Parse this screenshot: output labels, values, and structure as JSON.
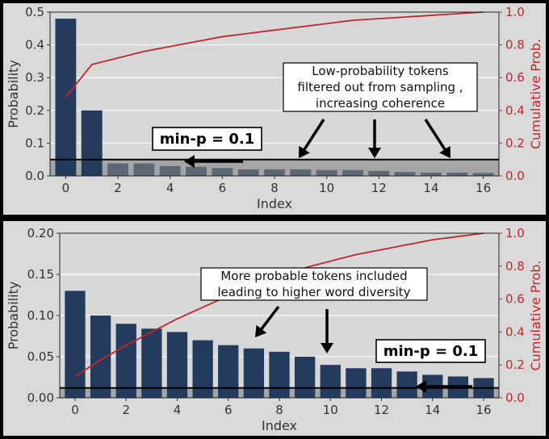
{
  "chart_data": [
    {
      "type": "bar",
      "panel": "top",
      "categories": [
        0,
        1,
        2,
        3,
        4,
        5,
        6,
        7,
        8,
        9,
        10,
        11,
        12,
        13,
        14,
        15,
        16
      ],
      "series": [
        {
          "values": [
            0.48,
            0.2,
            0.038,
            0.038,
            0.03,
            0.028,
            0.024,
            0.02,
            0.02,
            0.02,
            0.018,
            0.018,
            0.015,
            0.012,
            0.01,
            0.01,
            0.009
          ]
        },
        {
          "name": "Cumulative Prob.",
          "type": "line",
          "axis": "right",
          "values": [
            0.48,
            0.68,
            0.72,
            0.76,
            0.79,
            0.82,
            0.85,
            0.87,
            0.89,
            0.91,
            0.93,
            0.95,
            0.96,
            0.97,
            0.98,
            0.99,
            1.0
          ]
        }
      ],
      "threshold": 0.05,
      "xlabel": "Index",
      "ylabel": "Probability",
      "ylabel_right": "Cumulative Prob.",
      "ylim": [
        0,
        0.5
      ],
      "ylim_right": [
        0,
        1.0
      ],
      "xticks": [
        0,
        2,
        4,
        6,
        8,
        10,
        12,
        14,
        16
      ],
      "yticks": [
        "0.0",
        "0.1",
        "0.2",
        "0.3",
        "0.4",
        "0.5"
      ],
      "yticks_right": [
        "0.0",
        "0.2",
        "0.4",
        "0.6",
        "0.8",
        "1.0"
      ],
      "grid": true,
      "annotation_lines": [
        "Low-probability tokens",
        "filtered out from sampling ,",
        "increasing coherence"
      ],
      "minp_label": "min-p = 0.1"
    },
    {
      "type": "bar",
      "panel": "bottom",
      "categories": [
        0,
        1,
        2,
        3,
        4,
        5,
        6,
        7,
        8,
        9,
        10,
        11,
        12,
        13,
        14,
        15,
        16
      ],
      "series": [
        {
          "values": [
            0.13,
            0.1,
            0.09,
            0.084,
            0.08,
            0.07,
            0.064,
            0.06,
            0.056,
            0.05,
            0.04,
            0.036,
            0.036,
            0.032,
            0.028,
            0.026,
            0.024
          ]
        },
        {
          "name": "Cumulative Prob.",
          "type": "line",
          "axis": "right",
          "values": [
            0.13,
            0.23,
            0.32,
            0.4,
            0.48,
            0.55,
            0.62,
            0.68,
            0.74,
            0.79,
            0.83,
            0.87,
            0.9,
            0.93,
            0.96,
            0.98,
            1.0
          ]
        }
      ],
      "threshold": 0.012,
      "xlabel": "Index",
      "ylabel": "Probability",
      "ylabel_right": "Cumulative Prob.",
      "ylim": [
        0,
        0.2
      ],
      "ylim_right": [
        0,
        1.0
      ],
      "xticks": [
        0,
        2,
        4,
        6,
        8,
        10,
        12,
        14,
        16
      ],
      "yticks": [
        "0.00",
        "0.05",
        "0.10",
        "0.15",
        "0.20"
      ],
      "yticks_right": [
        "0.0",
        "0.2",
        "0.4",
        "0.6",
        "0.8",
        "1.0"
      ],
      "grid": true,
      "annotation_lines": [
        "More probable tokens included",
        "leading to higher word diversity"
      ],
      "minp_label": "min-p = 0.1"
    }
  ],
  "colors": {
    "bar": "#243b5e",
    "bar_shaded": "#5d6876",
    "cumulative_line": "#c0272d",
    "right_axis_text": "#c0272d",
    "plot_background": "#d8d8d8",
    "threshold_band": "#a5a5a5",
    "grid": "#ffffff"
  }
}
